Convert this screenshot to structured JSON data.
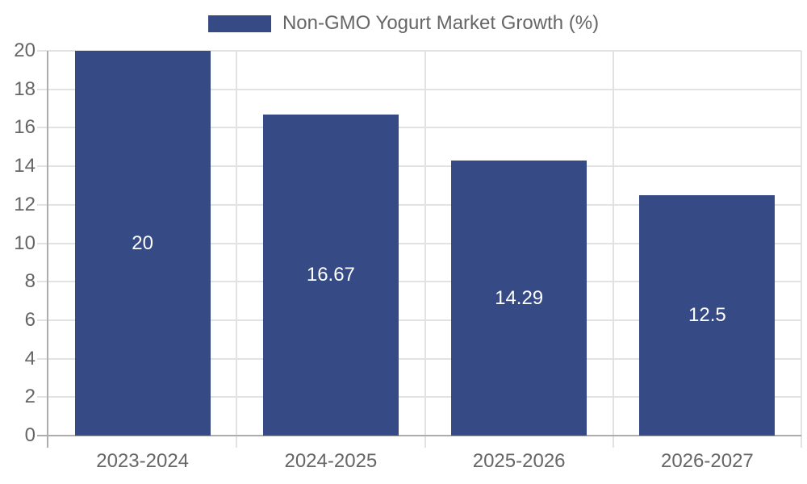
{
  "chart_data": {
    "type": "bar",
    "title": "Non-GMO Yogurt Market Growth (%)",
    "series_name": "Non-GMO Yogurt Market Growth (%)",
    "categories": [
      "2023-2024",
      "2024-2025",
      "2025-2026",
      "2026-2027"
    ],
    "values": [
      20,
      16.67,
      14.29,
      12.5
    ],
    "value_labels": [
      "20",
      "16.67",
      "14.29",
      "12.5"
    ],
    "xlabel": "",
    "ylabel": "",
    "ylim": [
      0,
      20
    ],
    "yticks": [
      0,
      2,
      4,
      6,
      8,
      10,
      12,
      14,
      16,
      18,
      20
    ],
    "grid": true,
    "legend_position": "top",
    "colors": {
      "bar": "#364a85",
      "value_label_text": "#ffffff",
      "axis_text": "#666666",
      "grid_line": "#e2e2e2",
      "axis_line": "#adadad",
      "background": "#ffffff"
    }
  }
}
